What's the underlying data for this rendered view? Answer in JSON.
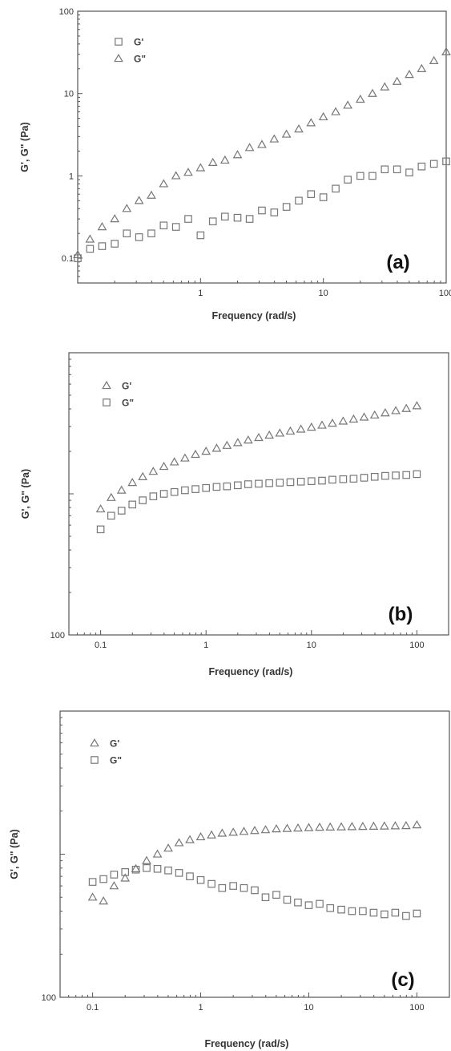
{
  "chart_data": [
    {
      "type": "scatter",
      "panel_label": "(a)",
      "xlabel": "Frequency (rad/s)",
      "ylabel": "G', G\" (Pa)",
      "xscale": "log",
      "yscale": "log",
      "xlim": [
        0.1,
        100
      ],
      "ylim": [
        0.05,
        100
      ],
      "x_ticks": [
        {
          "v": 1,
          "label": "1"
        },
        {
          "v": 10,
          "label": "10"
        },
        {
          "v": 100,
          "label": "100"
        }
      ],
      "y_ticks": [
        {
          "v": 0.1,
          "label": "0.1"
        },
        {
          "v": 1,
          "label": "1"
        },
        {
          "v": 10,
          "label": "10"
        },
        {
          "v": 100,
          "label": "100"
        }
      ],
      "legend_position": "top-left",
      "legend": [
        {
          "name": "G'",
          "marker": "square"
        },
        {
          "name": "G\"",
          "marker": "triangle"
        }
      ],
      "series": [
        {
          "name": "G'",
          "marker": "square",
          "x": [
            0.1,
            0.126,
            0.158,
            0.2,
            0.251,
            0.316,
            0.398,
            0.501,
            0.631,
            0.794,
            1,
            1.26,
            1.58,
            2,
            2.51,
            3.16,
            3.98,
            5.01,
            6.31,
            7.94,
            10,
            12.6,
            15.8,
            20,
            25.1,
            31.6,
            39.8,
            50.1,
            63.1,
            79.4,
            100
          ],
          "y": [
            0.1,
            0.13,
            0.14,
            0.15,
            0.2,
            0.18,
            0.2,
            0.25,
            0.24,
            0.3,
            0.19,
            0.28,
            0.32,
            0.31,
            0.3,
            0.38,
            0.36,
            0.42,
            0.5,
            0.6,
            0.55,
            0.7,
            0.9,
            1.0,
            1.0,
            1.2,
            1.2,
            1.1,
            1.3,
            1.4,
            1.5
          ]
        },
        {
          "name": "G\"",
          "marker": "triangle",
          "x": [
            0.1,
            0.126,
            0.158,
            0.2,
            0.251,
            0.316,
            0.398,
            0.501,
            0.631,
            0.794,
            1,
            1.26,
            1.58,
            2,
            2.51,
            3.16,
            3.98,
            5.01,
            6.31,
            7.94,
            10,
            12.6,
            15.8,
            20,
            25.1,
            31.6,
            39.8,
            50.1,
            63.1,
            79.4,
            100
          ],
          "y": [
            0.11,
            0.17,
            0.24,
            0.3,
            0.4,
            0.5,
            0.58,
            0.8,
            1.0,
            1.1,
            1.25,
            1.45,
            1.55,
            1.8,
            2.2,
            2.4,
            2.8,
            3.2,
            3.7,
            4.4,
            5.2,
            6.0,
            7.2,
            8.5,
            10,
            12,
            14,
            17,
            20,
            25,
            32
          ]
        }
      ]
    },
    {
      "type": "scatter",
      "panel_label": "(b)",
      "xlabel": "Frequency (rad/s)",
      "ylabel": "G', G\" (Pa)",
      "xscale": "log",
      "yscale": "log",
      "xlim": [
        0.05,
        200
      ],
      "ylim": [
        100,
        10000
      ],
      "x_ticks": [
        {
          "v": 0.1,
          "label": "0.1"
        },
        {
          "v": 1,
          "label": "1"
        },
        {
          "v": 10,
          "label": "10"
        },
        {
          "v": 100,
          "label": "100"
        }
      ],
      "y_ticks": [
        {
          "v": 100,
          "label": "100"
        },
        {
          "v": 1000,
          "label": ""
        },
        {
          "v": 10000,
          "label": ""
        }
      ],
      "legend_position": "top-left",
      "legend": [
        {
          "name": "G'",
          "marker": "triangle"
        },
        {
          "name": "G\"",
          "marker": "square"
        }
      ],
      "series": [
        {
          "name": "G'",
          "marker": "triangle",
          "x": [
            0.1,
            0.126,
            0.158,
            0.2,
            0.251,
            0.316,
            0.398,
            0.501,
            0.631,
            0.794,
            1,
            1.26,
            1.58,
            2,
            2.51,
            3.16,
            3.98,
            5.01,
            6.31,
            7.94,
            10,
            12.6,
            15.8,
            20,
            25.1,
            31.6,
            39.8,
            50.1,
            63.1,
            79.4,
            100
          ],
          "y": [
            780,
            940,
            1060,
            1200,
            1320,
            1440,
            1560,
            1680,
            1790,
            1900,
            2000,
            2100,
            2200,
            2300,
            2400,
            2500,
            2600,
            2690,
            2780,
            2870,
            2960,
            3060,
            3160,
            3270,
            3380,
            3490,
            3610,
            3740,
            3880,
            4020,
            4200
          ]
        },
        {
          "name": "G\"",
          "marker": "square",
          "x": [
            0.1,
            0.126,
            0.158,
            0.2,
            0.251,
            0.316,
            0.398,
            0.501,
            0.631,
            0.794,
            1,
            1.26,
            1.58,
            2,
            2.51,
            3.16,
            3.98,
            5.01,
            6.31,
            7.94,
            10,
            12.6,
            15.8,
            20,
            25.1,
            31.6,
            39.8,
            50.1,
            63.1,
            79.4,
            100
          ],
          "y": [
            560,
            700,
            760,
            840,
            900,
            960,
            1000,
            1030,
            1060,
            1080,
            1100,
            1120,
            1130,
            1150,
            1170,
            1180,
            1190,
            1200,
            1210,
            1220,
            1230,
            1240,
            1260,
            1270,
            1280,
            1300,
            1320,
            1340,
            1350,
            1360,
            1380
          ]
        }
      ]
    },
    {
      "type": "scatter",
      "panel_label": "(c)",
      "xlabel": "Frequency (rad/s)",
      "ylabel": "G', G\" (Pa)",
      "xscale": "log",
      "yscale": "log",
      "xlim": [
        0.05,
        200
      ],
      "ylim": [
        100,
        10000
      ],
      "x_ticks": [
        {
          "v": 0.1,
          "label": "0.1"
        },
        {
          "v": 1,
          "label": "1"
        },
        {
          "v": 10,
          "label": "10"
        },
        {
          "v": 100,
          "label": "100"
        }
      ],
      "y_ticks": [
        {
          "v": 100,
          "label": "100"
        },
        {
          "v": 1000,
          "label": ""
        },
        {
          "v": 10000,
          "label": ""
        }
      ],
      "legend_position": "top-left",
      "legend": [
        {
          "name": "G'",
          "marker": "triangle"
        },
        {
          "name": "G\"",
          "marker": "square"
        }
      ],
      "series": [
        {
          "name": "G'",
          "marker": "triangle",
          "x": [
            0.1,
            0.126,
            0.158,
            0.2,
            0.251,
            0.316,
            0.398,
            0.501,
            0.631,
            0.794,
            1,
            1.26,
            1.58,
            2,
            2.51,
            3.16,
            3.98,
            5.01,
            6.31,
            7.94,
            10,
            12.6,
            15.8,
            20,
            25.1,
            31.6,
            39.8,
            50.1,
            63.1,
            79.4,
            100
          ],
          "y": [
            500,
            470,
            600,
            680,
            790,
            900,
            1000,
            1100,
            1200,
            1260,
            1320,
            1360,
            1400,
            1420,
            1440,
            1460,
            1480,
            1500,
            1510,
            1520,
            1530,
            1540,
            1545,
            1550,
            1555,
            1560,
            1565,
            1570,
            1575,
            1580,
            1600
          ]
        },
        {
          "name": "G\"",
          "marker": "square",
          "x": [
            0.1,
            0.126,
            0.158,
            0.2,
            0.251,
            0.316,
            0.398,
            0.501,
            0.631,
            0.794,
            1,
            1.26,
            1.58,
            2,
            2.51,
            3.16,
            3.98,
            5.01,
            6.31,
            7.94,
            10,
            12.6,
            15.8,
            20,
            25.1,
            31.6,
            39.8,
            50.1,
            63.1,
            79.4,
            100
          ],
          "y": [
            640,
            670,
            720,
            750,
            780,
            800,
            790,
            770,
            740,
            700,
            660,
            620,
            580,
            600,
            580,
            560,
            500,
            520,
            480,
            460,
            440,
            450,
            420,
            410,
            400,
            400,
            390,
            380,
            390,
            370,
            385
          ]
        }
      ]
    }
  ]
}
